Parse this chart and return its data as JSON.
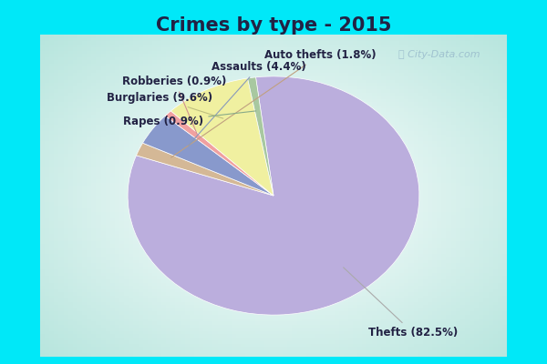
{
  "title": "Crimes by type - 2015",
  "slices": [
    {
      "label": "Thefts",
      "pct": 82.5,
      "color": "#bbaedd"
    },
    {
      "label": "Auto thefts",
      "pct": 1.8,
      "color": "#d4b896"
    },
    {
      "label": "Assaults",
      "pct": 4.4,
      "color": "#8899cc"
    },
    {
      "label": "Robberies",
      "pct": 0.9,
      "color": "#f0a0a0"
    },
    {
      "label": "Burglaries",
      "pct": 9.6,
      "color": "#f0f0a0"
    },
    {
      "label": "Rapes",
      "pct": 0.9,
      "color": "#a8c8a0"
    }
  ],
  "border_color": "#00e8f8",
  "border_width": 8,
  "title_color": "#222244",
  "title_fontsize": 15,
  "label_fontsize": 8.5,
  "label_color": "#222244",
  "watermark": "City-Data.com",
  "startangle": 97
}
